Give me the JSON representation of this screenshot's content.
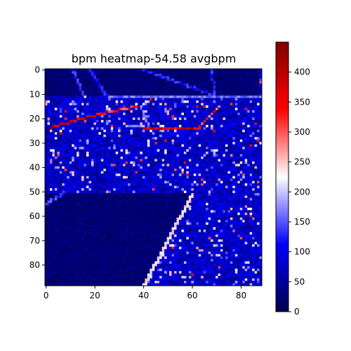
{
  "chart_data": {
    "type": "heatmap",
    "title": "bpm heatmap-54.58 avgbpm",
    "xlabel": "",
    "ylabel": "",
    "grid": false,
    "shape": [
      89,
      89
    ],
    "xlim": [
      0,
      89
    ],
    "ylim": [
      89,
      0
    ],
    "x_ticks": [
      "0",
      "20",
      "40",
      "60",
      "80"
    ],
    "y_ticks": [
      "0",
      "10",
      "20",
      "30",
      "40",
      "50",
      "60",
      "70",
      "80"
    ],
    "colorbar": {
      "range": [
        0,
        450
      ],
      "ticks": [
        "0",
        "50",
        "100",
        "150",
        "200",
        "250",
        "300",
        "350",
        "400"
      ],
      "colormap": "seismic"
    },
    "colors": {
      "low": "#00004c",
      "mid": "#ffffff",
      "high": "#7f0000"
    },
    "background_bpm": {
      "dark_region": 25,
      "speckled_region": 75
    },
    "features": [
      {
        "kind": "streak",
        "from": [
          2,
          23.5
        ],
        "to": [
          20,
          18.5
        ],
        "bpm": 370
      },
      {
        "kind": "streak",
        "from": [
          20,
          18.5
        ],
        "to": [
          37,
          15
        ],
        "bpm": 330
      },
      {
        "kind": "streak",
        "from": [
          40,
          23.5
        ],
        "to": [
          63,
          23.5
        ],
        "bpm": 380
      },
      {
        "kind": "streak",
        "from": [
          63,
          23
        ],
        "to": [
          71,
          15
        ],
        "bpm": 320
      },
      {
        "kind": "streak",
        "from": [
          40,
          89
        ],
        "to": [
          60,
          51
        ],
        "bpm": 230
      },
      {
        "kind": "streak",
        "from": [
          25,
          11
        ],
        "to": [
          88,
          11
        ],
        "bpm": 160
      },
      {
        "kind": "streak",
        "from": [
          40,
          0
        ],
        "to": [
          68,
          10
        ],
        "bpm": 130
      },
      {
        "kind": "streak",
        "from": [
          11,
          0
        ],
        "to": [
          15,
          10
        ],
        "bpm": 130
      },
      {
        "kind": "streak",
        "from": [
          18,
          0
        ],
        "to": [
          25,
          11
        ],
        "bpm": 130
      },
      {
        "kind": "streak",
        "from": [
          68,
          0
        ],
        "to": [
          69,
          10
        ],
        "bpm": 130
      },
      {
        "kind": "streak",
        "from": [
          0,
          55
        ],
        "to": [
          8,
          50
        ],
        "bpm": 140
      },
      {
        "kind": "streak",
        "from": [
          33,
          23
        ],
        "to": [
          40,
          23
        ],
        "bpm": 170
      },
      {
        "kind": "streak",
        "from": [
          39,
          15
        ],
        "to": [
          42,
          23
        ],
        "bpm": 170
      }
    ]
  }
}
